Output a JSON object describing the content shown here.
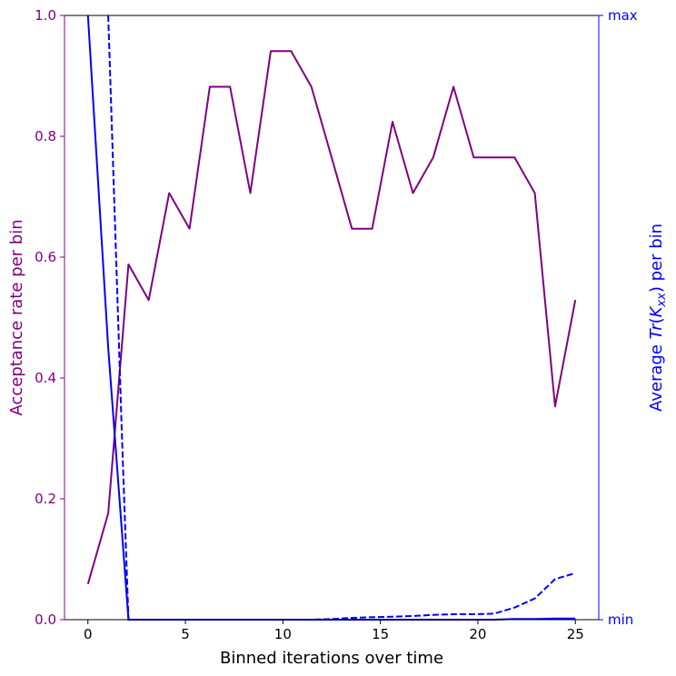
{
  "chart_data": {
    "type": "line",
    "xlabel": "Binned iterations over time",
    "ylabel_left": "Acceptance rate per bin",
    "ylabel_right_prefix": "Average ",
    "ylabel_right_math_fn": "Tr",
    "ylabel_right_math_K": "K",
    "ylabel_right_math_sub": "xx",
    "ylabel_right_suffix": " per bin",
    "xlim": [
      -1.2,
      26.2
    ],
    "ylim_left": [
      0.0,
      1.0
    ],
    "x_ticks": [
      0,
      5,
      10,
      15,
      20,
      25
    ],
    "y_ticks_left": [
      0.0,
      0.2,
      0.4,
      0.6,
      0.8,
      1.0
    ],
    "y_ticks_left_labels": [
      "0.0",
      "0.2",
      "0.4",
      "0.6",
      "0.8",
      "1.0"
    ],
    "y_ticks_right_labels": [
      "min",
      "max"
    ],
    "colors": {
      "left_axis": "#800080",
      "right_axis": "#0000ff"
    },
    "series": [
      {
        "axis": "left",
        "style": "solid",
        "color": "#800080",
        "x": [
          0,
          1.04,
          2.08,
          3.12,
          4.17,
          5.21,
          6.25,
          7.29,
          8.33,
          9.38,
          10.42,
          11.46,
          12.5,
          13.54,
          14.58,
          15.62,
          16.67,
          17.71,
          18.75,
          19.79,
          20.83,
          21.88,
          22.92,
          23.96,
          25
        ],
        "values": [
          0.059,
          0.176,
          0.588,
          0.529,
          0.706,
          0.647,
          0.882,
          0.882,
          0.706,
          0.941,
          0.941,
          0.882,
          0.765,
          0.647,
          0.647,
          0.824,
          0.706,
          0.765,
          0.882,
          0.765,
          0.765,
          0.765,
          0.706,
          0.353,
          0.529
        ]
      },
      {
        "axis": "right",
        "style": "solid",
        "color": "#0000ff",
        "x": [
          0,
          1.04,
          2.08,
          3.12,
          4.17,
          5.21,
          6.25,
          7.29,
          8.33,
          9.38,
          10.42,
          11.46,
          12.5,
          13.54,
          14.58,
          15.62,
          16.67,
          17.71,
          18.75,
          19.79,
          20.83,
          21.88,
          22.92,
          23.96,
          25
        ],
        "values": [
          1.0,
          0.45,
          0.0,
          0.0,
          0.0,
          0.0,
          0.0,
          0.0,
          0.0,
          0.0,
          0.0,
          0.0,
          0.0,
          0.0,
          0.0,
          0.0,
          0.0,
          0.0,
          0.0,
          0.0,
          0.0,
          0.001,
          0.001,
          0.002,
          0.002
        ]
      },
      {
        "axis": "right",
        "style": "dashed",
        "color": "#0000ff",
        "x": [
          1.04,
          1.75,
          2.08,
          3.12,
          4.17,
          5.21,
          6.25,
          7.29,
          8.33,
          9.38,
          10.42,
          11.46,
          12.5,
          13.54,
          14.58,
          15.62,
          16.67,
          17.71,
          18.75,
          19.79,
          20.83,
          21.88,
          22.92,
          23.96,
          25
        ],
        "values": [
          1.0,
          0.3,
          0.0,
          0.0,
          0.0,
          0.0,
          0.0,
          0.0,
          0.0,
          0.0,
          0.0,
          0.0,
          0.001,
          0.003,
          0.004,
          0.005,
          0.006,
          0.008,
          0.009,
          0.009,
          0.01,
          0.02,
          0.035,
          0.067,
          0.077
        ]
      }
    ]
  }
}
